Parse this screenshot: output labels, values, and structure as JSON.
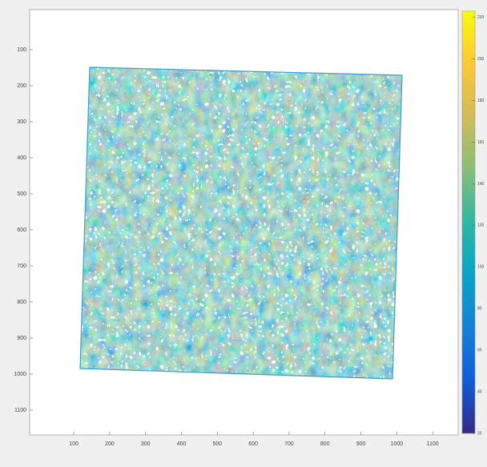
{
  "chart_data": {
    "type": "image",
    "xlim": [
      -23,
      1171
    ],
    "xticks": [
      100,
      200,
      300,
      400,
      500,
      600,
      700,
      800,
      900,
      1000,
      1100
    ],
    "ylim": [
      -11,
      1169
    ],
    "yticks": [
      100,
      200,
      300,
      400,
      500,
      600,
      700,
      800,
      900,
      1000,
      1100
    ],
    "y_reversed": true,
    "colorbar": {
      "clim": [
        20,
        223
      ],
      "ticks": [
        20,
        40,
        60,
        80,
        100,
        120,
        140,
        160,
        180,
        200,
        220
      ],
      "colormap": [
        "#352a87",
        "#0f5cdd",
        "#1481d6",
        "#06a4ca",
        "#2eb7a4",
        "#87bf77",
        "#d1bb59",
        "#fec832",
        "#f9fb0e"
      ]
    }
  }
}
